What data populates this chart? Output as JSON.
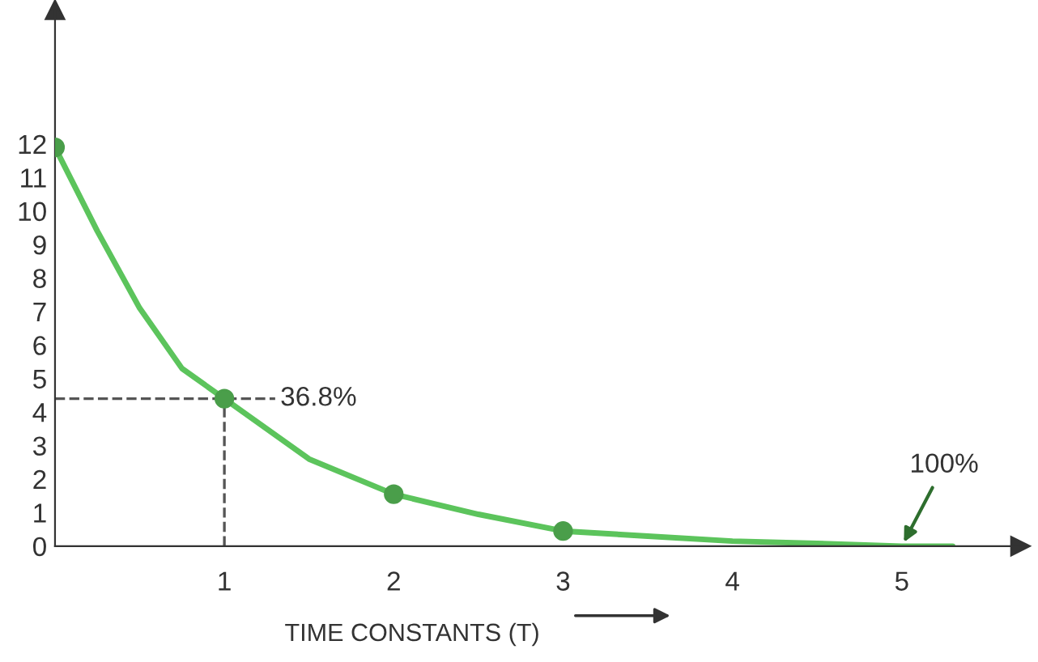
{
  "chart_data": {
    "type": "line",
    "xlabel": "TIME CONSTANTS (T)",
    "series": [
      {
        "color": "#5cc45c",
        "x": [
          0,
          0.25,
          0.5,
          0.75,
          1,
          1.5,
          2,
          2.5,
          3,
          3.5,
          4,
          4.5,
          5,
          5.3
        ],
        "values": [
          11.9,
          9.4,
          7.1,
          5.3,
          4.4,
          2.6,
          1.55,
          0.95,
          0.45,
          0.3,
          0.15,
          0.08,
          0,
          0
        ]
      },
      {
        "type": "scatter",
        "color": "#4a9e4a",
        "marker": "circle",
        "x": [
          0,
          1,
          2,
          3
        ],
        "values": [
          11.9,
          4.4,
          1.55,
          0.45
        ]
      }
    ],
    "xlim": [
      0,
      5.7
    ],
    "ylim": [
      0,
      16
    ],
    "xticks": [
      1,
      2,
      3,
      4,
      5
    ],
    "yticks": [
      0,
      1,
      2,
      3,
      4,
      5,
      6,
      7,
      8,
      9,
      10,
      11,
      12
    ],
    "ref_lines": [
      {
        "axis": "y",
        "value": 4.4,
        "line_style": "dashed",
        "color": "#555555"
      },
      {
        "axis": "x",
        "value": 1,
        "line_style": "dashed",
        "color": "#555555"
      }
    ],
    "annotations": [
      {
        "text": "36.8%",
        "x": 1,
        "y": 4.4
      },
      {
        "text": "100%",
        "x": 5,
        "y": 0
      }
    ],
    "grid": false,
    "legend": false
  }
}
